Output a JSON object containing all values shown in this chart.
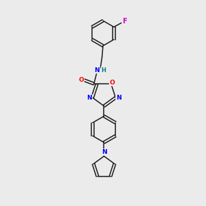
{
  "background_color": "#ebebeb",
  "bond_color": "#1a1a1a",
  "atom_colors": {
    "N": "#0000ff",
    "O": "#ff0000",
    "F": "#cc00cc",
    "H": "#008080",
    "C": "#1a1a1a"
  },
  "font_size_atom": 6.5,
  "line_width": 1.1
}
